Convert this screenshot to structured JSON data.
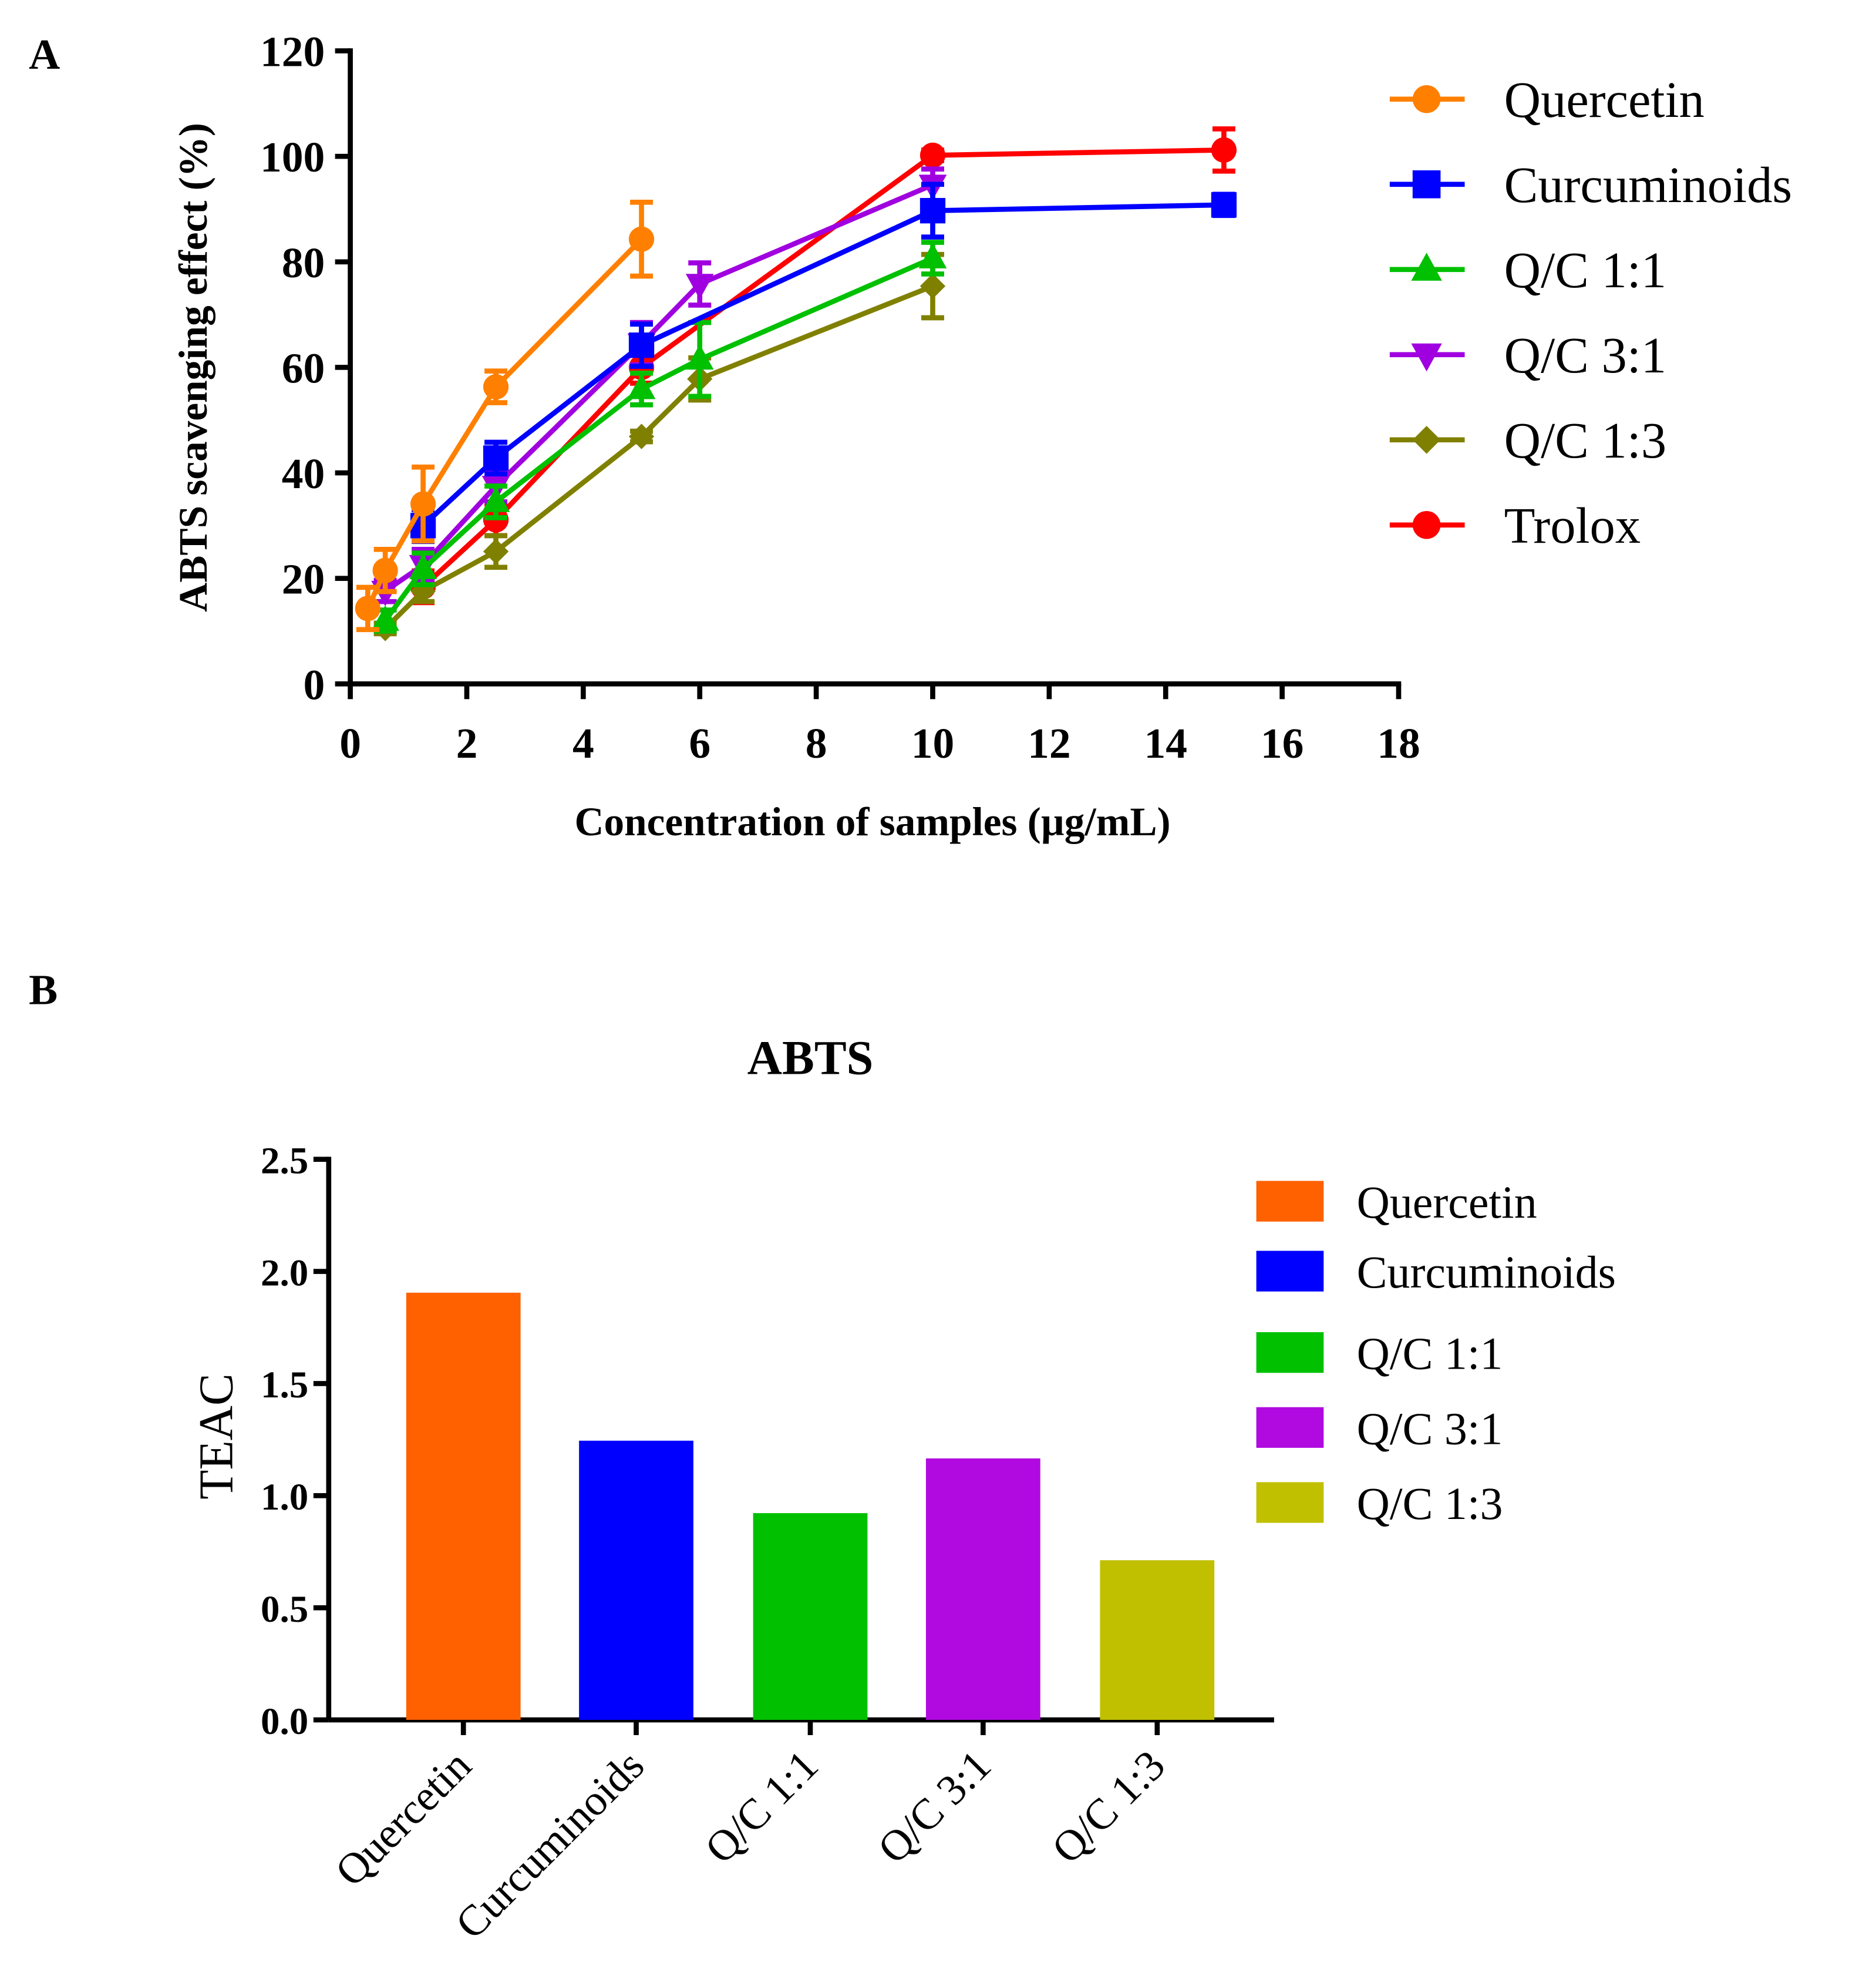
{
  "chart_data": [
    {
      "type": "line",
      "panel_label": "A",
      "title": "",
      "xlabel": "Concentration of samples (µg/mL)",
      "ylabel": "ABTS scavenging effect (%)",
      "xlim": [
        0,
        18
      ],
      "ylim": [
        0,
        120
      ],
      "xticks": [
        0,
        2,
        4,
        6,
        8,
        10,
        12,
        14,
        16,
        18
      ],
      "yticks": [
        0,
        20,
        40,
        60,
        80,
        100,
        120
      ],
      "legend_position": "right",
      "series": [
        {
          "name": "Quercetin",
          "color": "#ff8000",
          "marker": "circle",
          "x": [
            0.3,
            0.6,
            1.25,
            2.5,
            5
          ],
          "y": [
            14.3,
            21.5,
            34.1,
            56.3,
            84.3
          ],
          "err": [
            4,
            4,
            7,
            3,
            7
          ]
        },
        {
          "name": "Curcuminoids",
          "color": "#0000ff",
          "marker": "square",
          "x": [
            1.25,
            2.5,
            5,
            10,
            15
          ],
          "y": [
            30,
            42.8,
            64.2,
            89.7,
            90.8
          ],
          "err": [
            3,
            3,
            4,
            5,
            2
          ]
        },
        {
          "name": "Q/C 1:1",
          "color": "#00c000",
          "marker": "triangle-up",
          "x": [
            0.6,
            1.25,
            2.5,
            5,
            6,
            10
          ],
          "y": [
            12,
            21.8,
            34.5,
            55.9,
            61.5,
            80.7
          ],
          "err": [
            2,
            3,
            3,
            3,
            7,
            3
          ]
        },
        {
          "name": "Q/C 3:1",
          "color": "#a000e0",
          "marker": "triangle-down",
          "x": [
            0.6,
            1.25,
            2.5,
            5,
            6,
            10
          ],
          "y": [
            17.6,
            22.5,
            37.5,
            64.5,
            75.8,
            94.6
          ],
          "err": [
            2,
            3,
            3,
            4,
            4,
            3
          ]
        },
        {
          "name": "Q/C 1:3",
          "color": "#808000",
          "marker": "diamond",
          "x": [
            0.6,
            1.25,
            2.5,
            5,
            6,
            10
          ],
          "y": [
            10.5,
            17.6,
            25.1,
            46.9,
            57.8,
            75.4
          ],
          "err": [
            1,
            2,
            3,
            1,
            4,
            6
          ]
        },
        {
          "name": "Trolox",
          "color": "#ff0000",
          "marker": "circle",
          "x": [
            1.25,
            2.5,
            5,
            10,
            15
          ],
          "y": [
            18.4,
            31.1,
            60,
            100.2,
            101.2
          ],
          "err": [
            3,
            3,
            3,
            1,
            4
          ]
        }
      ]
    },
    {
      "type": "bar",
      "panel_label": "B",
      "title": "ABTS",
      "xlabel": "",
      "ylabel": "TEAC",
      "ylim": [
        0,
        2.5
      ],
      "yticks": [
        "0.0",
        "0.5",
        "1.0",
        "1.5",
        "2.0",
        "2.5"
      ],
      "legend_position": "right",
      "categories": [
        "Quercetin",
        "Curcuminoids",
        "Q/C 1:1",
        "Q/C 3:1",
        "Q/C 1:3"
      ],
      "values": [
        1.905,
        1.245,
        0.922,
        1.166,
        0.712
      ],
      "colors": [
        "#ff6000",
        "#0000ff",
        "#00c000",
        "#b00ae0",
        "#c0c000"
      ]
    }
  ]
}
